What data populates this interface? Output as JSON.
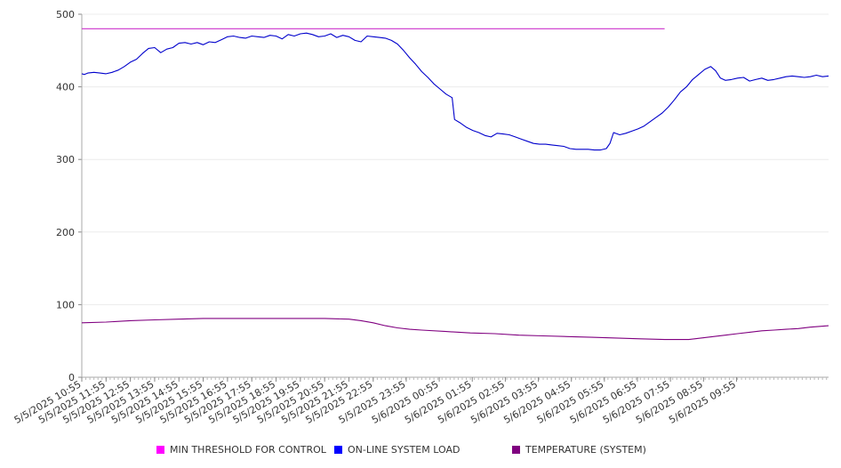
{
  "chart_data": {
    "type": "line",
    "title": "",
    "xlabel": "",
    "ylabel": "",
    "ylim": [
      0,
      500
    ],
    "yticks": [
      0,
      100,
      200,
      300,
      400,
      500
    ],
    "grid": true,
    "legend_position": "bottom",
    "x_tick_labels": [
      "5/5/2025 10:55",
      "5/5/2025 11:55",
      "5/5/2025 12:55",
      "5/5/2025 13:55",
      "5/5/2025 14:55",
      "5/5/2025 15:55",
      "5/5/2025 16:55",
      "5/5/2025 17:55",
      "5/5/2025 18:55",
      "5/5/2025 19:55",
      "5/5/2025 20:55",
      "5/5/2025 21:55",
      "5/5/2025 22:55",
      "5/5/2025 23:55",
      "5/6/2025 00:55",
      "5/6/2025 01:55",
      "5/6/2025 02:55",
      "5/6/2025 03:55",
      "5/6/2025 04:55",
      "5/6/2025 05:55",
      "5/6/2025 06:55",
      "5/6/2025 07:55",
      "5/6/2025 08:55",
      "5/6/2025 09:55"
    ],
    "series": [
      {
        "name": "MIN THRESHOLD FOR CONTROL",
        "color": "#cc33cc",
        "points": [
          [
            0,
            480
          ],
          [
            24,
            480
          ]
        ]
      },
      {
        "name": "ON-LINE SYSTEM LOAD",
        "color": "#0000cc",
        "points": [
          [
            0,
            418
          ],
          [
            0.1,
            417
          ],
          [
            0.25,
            419
          ],
          [
            0.5,
            420
          ],
          [
            0.75,
            419
          ],
          [
            1,
            418
          ],
          [
            1.25,
            420
          ],
          [
            1.5,
            423
          ],
          [
            1.75,
            428
          ],
          [
            2,
            434
          ],
          [
            2.25,
            438
          ],
          [
            2.5,
            446
          ],
          [
            2.75,
            453
          ],
          [
            3,
            454
          ],
          [
            3.25,
            447
          ],
          [
            3.5,
            452
          ],
          [
            3.75,
            454
          ],
          [
            4,
            460
          ],
          [
            4.25,
            461
          ],
          [
            4.5,
            459
          ],
          [
            4.75,
            461
          ],
          [
            5,
            458
          ],
          [
            5.25,
            462
          ],
          [
            5.5,
            461
          ],
          [
            5.75,
            465
          ],
          [
            6,
            469
          ],
          [
            6.25,
            470
          ],
          [
            6.5,
            468
          ],
          [
            6.75,
            467
          ],
          [
            7,
            470
          ],
          [
            7.25,
            469
          ],
          [
            7.5,
            468
          ],
          [
            7.75,
            471
          ],
          [
            8,
            470
          ],
          [
            8.25,
            466
          ],
          [
            8.5,
            472
          ],
          [
            8.75,
            470
          ],
          [
            9,
            473
          ],
          [
            9.25,
            474
          ],
          [
            9.5,
            472
          ],
          [
            9.75,
            469
          ],
          [
            10,
            470
          ],
          [
            10.25,
            473
          ],
          [
            10.5,
            468
          ],
          [
            10.75,
            471
          ],
          [
            11,
            469
          ],
          [
            11.25,
            464
          ],
          [
            11.5,
            462
          ],
          [
            11.75,
            470
          ],
          [
            12,
            469
          ],
          [
            12.25,
            468
          ],
          [
            12.5,
            467
          ],
          [
            12.75,
            464
          ],
          [
            13,
            459
          ],
          [
            13.25,
            450
          ],
          [
            13.5,
            440
          ],
          [
            13.75,
            431
          ],
          [
            14,
            421
          ],
          [
            14.25,
            413
          ],
          [
            14.5,
            404
          ],
          [
            14.75,
            397
          ],
          [
            15,
            390
          ],
          [
            15.25,
            385
          ],
          [
            15.35,
            355
          ],
          [
            15.6,
            350
          ],
          [
            15.85,
            344
          ],
          [
            16.1,
            340
          ],
          [
            16.35,
            337
          ],
          [
            16.6,
            333
          ],
          [
            16.85,
            331
          ],
          [
            17.1,
            336
          ],
          [
            17.35,
            335
          ],
          [
            17.6,
            334
          ],
          [
            17.85,
            331
          ],
          [
            18.1,
            328
          ],
          [
            18.35,
            325
          ],
          [
            18.6,
            322
          ],
          [
            18.85,
            321
          ],
          [
            19.1,
            321
          ],
          [
            19.35,
            320
          ],
          [
            19.6,
            319
          ],
          [
            19.85,
            318
          ],
          [
            20.1,
            315
          ],
          [
            20.35,
            314
          ],
          [
            20.6,
            314
          ],
          [
            20.85,
            314
          ],
          [
            21.1,
            313
          ],
          [
            21.35,
            313
          ],
          [
            21.6,
            315
          ],
          [
            21.75,
            322
          ],
          [
            21.9,
            337
          ],
          [
            22.15,
            334
          ],
          [
            22.4,
            336
          ],
          [
            22.65,
            339
          ],
          [
            22.9,
            342
          ],
          [
            23.15,
            346
          ],
          [
            23.4,
            352
          ],
          [
            23.65,
            358
          ],
          [
            23.9,
            364
          ],
          [
            24.15,
            372
          ],
          [
            24.4,
            382
          ],
          [
            24.65,
            393
          ],
          [
            24.9,
            400
          ],
          [
            25.15,
            410
          ],
          [
            25.4,
            417
          ],
          [
            25.65,
            424
          ],
          [
            25.9,
            428
          ],
          [
            26.1,
            422
          ],
          [
            26.3,
            412
          ],
          [
            26.5,
            409
          ],
          [
            26.75,
            410
          ],
          [
            27,
            412
          ],
          [
            27.25,
            413
          ],
          [
            27.5,
            408
          ],
          [
            27.75,
            410
          ],
          [
            28,
            412
          ],
          [
            28.25,
            409
          ],
          [
            28.5,
            410
          ],
          [
            28.75,
            412
          ],
          [
            29,
            414
          ],
          [
            29.25,
            415
          ],
          [
            29.5,
            414
          ],
          [
            29.75,
            413
          ],
          [
            30,
            414
          ],
          [
            30.25,
            416
          ],
          [
            30.5,
            414
          ],
          [
            30.75,
            415
          ]
        ]
      },
      {
        "name": "TEMPERATURE (SYSTEM)",
        "color": "#800080",
        "points": [
          [
            0,
            75
          ],
          [
            1,
            76
          ],
          [
            2,
            78
          ],
          [
            3,
            79
          ],
          [
            4,
            80
          ],
          [
            5,
            81
          ],
          [
            6,
            81
          ],
          [
            7,
            81
          ],
          [
            8,
            81
          ],
          [
            9,
            81
          ],
          [
            10,
            81
          ],
          [
            11,
            80
          ],
          [
            11.5,
            78
          ],
          [
            12,
            75
          ],
          [
            12.5,
            71
          ],
          [
            13,
            68
          ],
          [
            13.5,
            66
          ],
          [
            14,
            65
          ],
          [
            15,
            63
          ],
          [
            16,
            61
          ],
          [
            17,
            60
          ],
          [
            18,
            58
          ],
          [
            19,
            57
          ],
          [
            20,
            56
          ],
          [
            21,
            55
          ],
          [
            22,
            54
          ],
          [
            23,
            53
          ],
          [
            24,
            52
          ],
          [
            25,
            52
          ],
          [
            25.5,
            54
          ],
          [
            26,
            56
          ],
          [
            26.5,
            58
          ],
          [
            27,
            60
          ],
          [
            27.5,
            62
          ],
          [
            28,
            64
          ],
          [
            28.5,
            65
          ],
          [
            29,
            66
          ],
          [
            29.5,
            67
          ],
          [
            30,
            69
          ],
          [
            30.75,
            71
          ]
        ]
      }
    ]
  },
  "legend": {
    "items": [
      {
        "label": "MIN THRESHOLD FOR CONTROL",
        "color": "#ff00ff"
      },
      {
        "label": "ON-LINE SYSTEM LOAD",
        "color": "#0000ff"
      },
      {
        "label": "TEMPERATURE (SYSTEM)",
        "color": "#800080"
      }
    ]
  }
}
